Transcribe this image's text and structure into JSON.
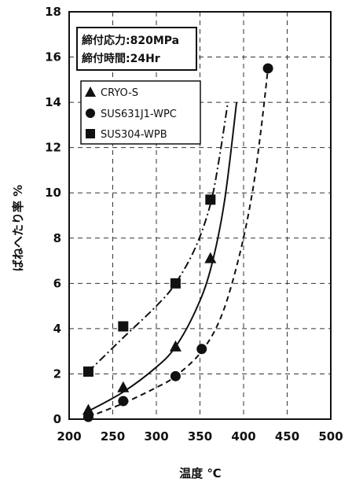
{
  "chart_data": {
    "type": "scatter",
    "xlabel": "温度 ℃",
    "ylabel": "ばねへたり率 %",
    "xlim": [
      200,
      500
    ],
    "ylim": [
      0,
      18
    ],
    "x_ticks": [
      "200",
      "250",
      "300",
      "350",
      "400",
      "450",
      "500"
    ],
    "y_ticks": [
      "0",
      "2",
      "4",
      "6",
      "8",
      "10",
      "12",
      "14",
      "16",
      "18"
    ],
    "grid": "dashed",
    "conditions": [
      "締付応力:820MPa",
      "締付時間:24Hr"
    ],
    "legend_position": "upper-left",
    "series": [
      {
        "name": "CRYO-S",
        "marker": "triangle",
        "line": "solid",
        "x": [
          222,
          262,
          322,
          362
        ],
        "y": [
          0.4,
          1.4,
          3.2,
          7.1
        ],
        "curve": {
          "x": [
            222,
            262,
            300,
            322,
            345,
            362,
            378,
            392
          ],
          "y": [
            0.35,
            1.2,
            2.3,
            3.2,
            4.8,
            6.6,
            9.6,
            14.0
          ]
        }
      },
      {
        "name": "SUS631J1-WPC",
        "marker": "circle",
        "line": "dashed",
        "x": [
          222,
          262,
          322,
          352,
          428
        ],
        "y": [
          0.1,
          0.8,
          1.9,
          3.1,
          15.5
        ],
        "curve": {
          "x": [
            222,
            262,
            300,
            322,
            352,
            375,
            395,
            410,
            420,
            428
          ],
          "y": [
            0.1,
            0.7,
            1.4,
            1.9,
            3.0,
            4.6,
            7.2,
            10.0,
            12.8,
            15.5
          ]
        }
      },
      {
        "name": "SUS304-WPB",
        "marker": "square",
        "line": "dash-dot",
        "x": [
          222,
          262,
          322,
          362
        ],
        "y": [
          2.1,
          4.1,
          6.0,
          9.7
        ],
        "curve": {
          "x": [
            222,
            262,
            300,
            322,
            345,
            362,
            372,
            382
          ],
          "y": [
            2.1,
            3.6,
            5.0,
            6.0,
            7.6,
            9.5,
            11.5,
            14.0
          ]
        }
      }
    ]
  }
}
